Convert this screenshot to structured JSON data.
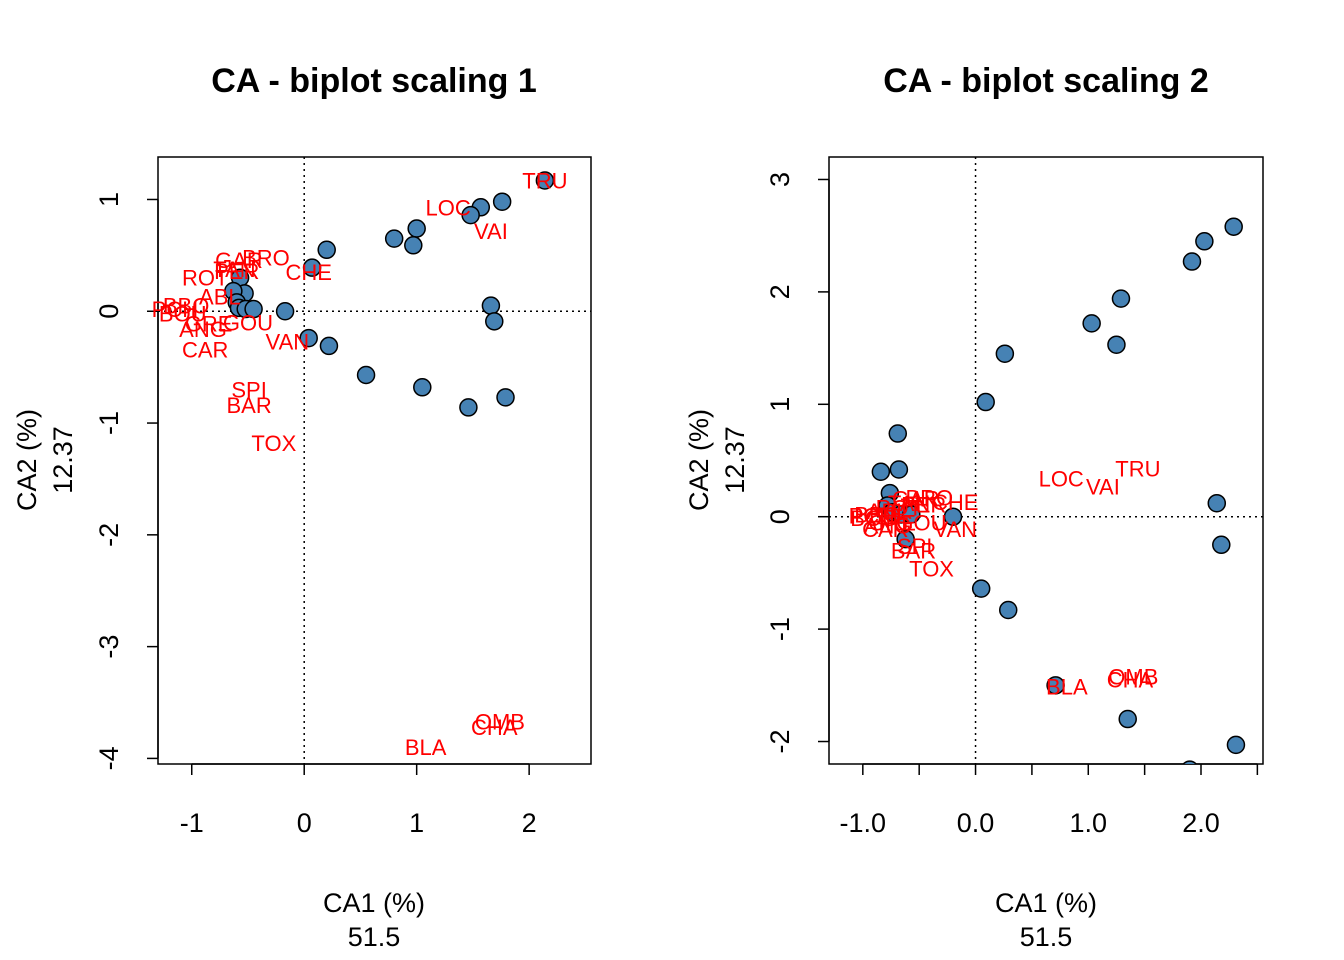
{
  "chart_data": [
    {
      "type": "scatter",
      "title": "CA - biplot scaling 1",
      "xlabel": "CA1 (%)",
      "xlabel_value": "51.5",
      "ylabel": "CA2 (%)",
      "ylabel_value": "12.37",
      "xlim": [
        -1.3,
        2.55
      ],
      "ylim": [
        -4.05,
        1.38
      ],
      "xticks": [
        -1,
        0,
        1,
        2
      ],
      "xtick_labels": [
        "-1",
        "0",
        "1",
        "2"
      ],
      "yticks": [
        1,
        0,
        -1,
        -2,
        -3,
        -4
      ],
      "ytick_labels": [
        "1",
        "0",
        "-1",
        "-2",
        "-3",
        "-4"
      ],
      "reference_lines": {
        "x": 0,
        "y": 0,
        "style": "dotted"
      },
      "colors": {
        "points": "#4682b4",
        "labels": "#ff0000"
      },
      "points": [
        {
          "x": 2.14,
          "y": 1.17
        },
        {
          "x": 1.76,
          "y": 0.98
        },
        {
          "x": 1.57,
          "y": 0.93
        },
        {
          "x": 1.48,
          "y": 0.86
        },
        {
          "x": 1.0,
          "y": 0.74
        },
        {
          "x": 0.8,
          "y": 0.65
        },
        {
          "x": 0.97,
          "y": 0.59
        },
        {
          "x": 0.2,
          "y": 0.55
        },
        {
          "x": 0.07,
          "y": 0.39
        },
        {
          "x": -0.57,
          "y": 0.3
        },
        {
          "x": -0.53,
          "y": 0.16
        },
        {
          "x": -0.63,
          "y": 0.18
        },
        {
          "x": -0.6,
          "y": 0.08
        },
        {
          "x": -0.58,
          "y": 0.03
        },
        {
          "x": -0.52,
          "y": 0.02
        },
        {
          "x": -0.45,
          "y": 0.02
        },
        {
          "x": -0.17,
          "y": 0.0
        },
        {
          "x": 0.04,
          "y": -0.24
        },
        {
          "x": 0.22,
          "y": -0.31
        },
        {
          "x": 1.66,
          "y": 0.05
        },
        {
          "x": 1.69,
          "y": -0.09
        },
        {
          "x": 0.55,
          "y": -0.57
        },
        {
          "x": 1.05,
          "y": -0.68
        },
        {
          "x": 1.46,
          "y": -0.86
        },
        {
          "x": 1.79,
          "y": -0.77
        }
      ],
      "labels": [
        {
          "text": "TRU",
          "x": 2.14,
          "y": 1.17
        },
        {
          "text": "LOC",
          "x": 1.28,
          "y": 0.93
        },
        {
          "text": "VAI",
          "x": 1.66,
          "y": 0.72
        },
        {
          "text": "GAR",
          "x": -0.58,
          "y": 0.46
        },
        {
          "text": "BRO",
          "x": -0.34,
          "y": 0.48
        },
        {
          "text": "PER",
          "x": -0.6,
          "y": 0.36
        },
        {
          "text": "CHE",
          "x": 0.04,
          "y": 0.35
        },
        {
          "text": "ROT",
          "x": -0.88,
          "y": 0.3
        },
        {
          "text": "TAN",
          "x": -0.62,
          "y": 0.38
        },
        {
          "text": "ABL",
          "x": -0.75,
          "y": 0.13
        },
        {
          "text": "BBO",
          "x": -1.05,
          "y": 0.05
        },
        {
          "text": "BOU",
          "x": -1.08,
          "y": -0.02
        },
        {
          "text": "PCH",
          "x": -1.15,
          "y": 0.02
        },
        {
          "text": "GOU",
          "x": -0.5,
          "y": -0.1
        },
        {
          "text": "ANG",
          "x": -0.9,
          "y": -0.16
        },
        {
          "text": "GRE",
          "x": -0.85,
          "y": -0.11
        },
        {
          "text": "CAR",
          "x": -0.88,
          "y": -0.34
        },
        {
          "text": "VAN",
          "x": -0.15,
          "y": -0.27
        },
        {
          "text": "SPI",
          "x": -0.49,
          "y": -0.7
        },
        {
          "text": "BAR",
          "x": -0.49,
          "y": -0.84
        },
        {
          "text": "TOX",
          "x": -0.27,
          "y": -1.18
        },
        {
          "text": "OMB",
          "x": 1.74,
          "y": -3.67
        },
        {
          "text": "CHA",
          "x": 1.69,
          "y": -3.72
        },
        {
          "text": "BLA",
          "x": 1.08,
          "y": -3.9
        }
      ]
    },
    {
      "type": "scatter",
      "title": "CA - biplot scaling 2",
      "xlabel": "CA1 (%)",
      "xlabel_value": "51.5",
      "ylabel": "CA2 (%)",
      "ylabel_value": "12.37",
      "xlim": [
        -1.3,
        2.55
      ],
      "ylim": [
        -2.2,
        3.2
      ],
      "xticks": [
        -1.0,
        -0.5,
        0.0,
        0.5,
        1.0,
        1.5,
        2.0,
        2.5
      ],
      "xtick_labels": [
        "-1.0",
        "",
        "0.0",
        "",
        "1.0",
        "",
        "2.0",
        ""
      ],
      "yticks": [
        3,
        2,
        1,
        0,
        -1,
        -2
      ],
      "ytick_labels": [
        "3",
        "2",
        "1",
        "0",
        "-1",
        "-2"
      ],
      "reference_lines": {
        "x": 0,
        "y": 0,
        "style": "dotted"
      },
      "colors": {
        "points": "#4682b4",
        "labels": "#ff0000"
      },
      "points": [
        {
          "x": 2.29,
          "y": 2.58
        },
        {
          "x": 2.03,
          "y": 2.45
        },
        {
          "x": 1.92,
          "y": 2.27
        },
        {
          "x": 1.29,
          "y": 1.94
        },
        {
          "x": 1.03,
          "y": 1.72
        },
        {
          "x": 1.25,
          "y": 1.53
        },
        {
          "x": 0.26,
          "y": 1.45
        },
        {
          "x": 0.09,
          "y": 1.02
        },
        {
          "x": -0.69,
          "y": 0.74
        },
        {
          "x": -0.68,
          "y": 0.42
        },
        {
          "x": -0.84,
          "y": 0.4
        },
        {
          "x": -0.76,
          "y": 0.21
        },
        {
          "x": -0.78,
          "y": 0.1
        },
        {
          "x": -0.74,
          "y": 0.04
        },
        {
          "x": -0.66,
          "y": 0.02
        },
        {
          "x": -0.57,
          "y": 0.02
        },
        {
          "x": -0.2,
          "y": 0.0
        },
        {
          "x": -0.62,
          "y": -0.2
        },
        {
          "x": 2.14,
          "y": 0.12
        },
        {
          "x": 2.18,
          "y": -0.25
        },
        {
          "x": 0.05,
          "y": -0.64
        },
        {
          "x": 0.29,
          "y": -0.83
        },
        {
          "x": 0.71,
          "y": -1.5
        },
        {
          "x": 1.35,
          "y": -1.8
        },
        {
          "x": 2.31,
          "y": -2.03
        },
        {
          "x": 1.9,
          "y": -2.25
        }
      ],
      "labels": [
        {
          "text": "TRU",
          "x": 1.44,
          "y": 0.43
        },
        {
          "text": "LOC",
          "x": 0.76,
          "y": 0.34
        },
        {
          "text": "VAI",
          "x": 1.13,
          "y": 0.27
        },
        {
          "text": "GAR",
          "x": -0.53,
          "y": 0.16
        },
        {
          "text": "BRO",
          "x": -0.41,
          "y": 0.17
        },
        {
          "text": "PER",
          "x": -0.46,
          "y": 0.11
        },
        {
          "text": "CHE",
          "x": -0.18,
          "y": 0.13
        },
        {
          "text": "ROT",
          "x": -0.68,
          "y": 0.08
        },
        {
          "text": "TAN",
          "x": -0.59,
          "y": 0.12
        },
        {
          "text": "ABL",
          "x": -0.78,
          "y": 0.05
        },
        {
          "text": "BBO",
          "x": -0.87,
          "y": 0.02
        },
        {
          "text": "BOU",
          "x": -0.9,
          "y": -0.01
        },
        {
          "text": "PCH",
          "x": -0.92,
          "y": 0.01
        },
        {
          "text": "GOU",
          "x": -0.48,
          "y": -0.05
        },
        {
          "text": "ANG",
          "x": -0.78,
          "y": -0.08
        },
        {
          "text": "GRE",
          "x": -0.74,
          "y": -0.05
        },
        {
          "text": "CAR",
          "x": -0.8,
          "y": -0.11
        },
        {
          "text": "VAN",
          "x": -0.18,
          "y": -0.11
        },
        {
          "text": "SPI",
          "x": -0.54,
          "y": -0.26
        },
        {
          "text": "BAR",
          "x": -0.55,
          "y": -0.3
        },
        {
          "text": "TOX",
          "x": -0.39,
          "y": -0.46
        },
        {
          "text": "OMB",
          "x": 1.4,
          "y": -1.42
        },
        {
          "text": "CHA",
          "x": 1.37,
          "y": -1.45
        },
        {
          "text": "BLA",
          "x": 0.81,
          "y": -1.51
        }
      ]
    }
  ]
}
